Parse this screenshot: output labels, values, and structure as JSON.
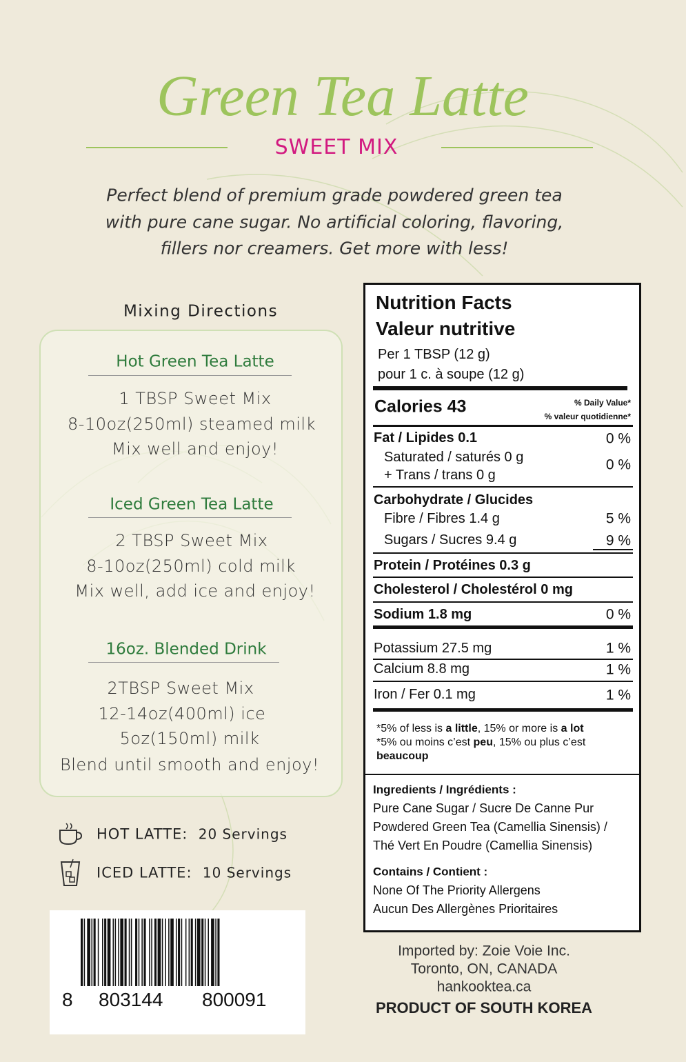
{
  "header": {
    "title": "Green Tea Latte",
    "subtitle": "SWEET MIX",
    "description": [
      "Perfect blend of premium grade powdered green tea",
      "with pure cane sugar. No artificial coloring, flavoring,",
      "fillers nor creamers. Get more with less!"
    ]
  },
  "directions": {
    "title": "Mixing Directions",
    "sections": [
      {
        "heading": "Hot Green Tea Latte",
        "lines": [
          "1 TBSP Sweet Mix",
          "8-10oz(250ml) steamed milk",
          "Mix well and enjoy!"
        ]
      },
      {
        "heading": "Iced Green Tea Latte",
        "lines": [
          "2 TBSP Sweet Mix",
          "8-10oz(250ml) cold milk",
          "Mix well, add ice and enjoy!"
        ]
      },
      {
        "heading": "16oz. Blended Drink",
        "lines": [
          "2TBSP Sweet Mix",
          "12-14oz(400ml) ice",
          "5oz(150ml) milk",
          "Blend until smooth and enjoy!"
        ]
      }
    ]
  },
  "servings": [
    {
      "label": "HOT LATTE:",
      "value": "20 Servings"
    },
    {
      "label": "ICED LATTE:",
      "value": "10 Servings"
    }
  ],
  "barcode": {
    "digits": [
      "8",
      "803144",
      "800091"
    ]
  },
  "nutrition": {
    "title": "Nutrition Facts",
    "title_fr": "Valeur nutritive",
    "serving": [
      "Per 1 TBSP (12 g)",
      "pour 1 c. à soupe (12 g)"
    ],
    "calories": "Calories 43",
    "dv_header": [
      "% Daily Value*",
      "% valeur quotidienne*"
    ],
    "rows": [
      {
        "label": "Fat / Lipides 0.1",
        "dv": "0 %"
      },
      {
        "label": "Saturated / saturés 0 g"
      },
      {
        "label": "+ Trans / trans 0 g",
        "dv": "0 %"
      },
      {
        "label": "Carbohydrate / Glucides"
      },
      {
        "label": "Fibre / Fibres 1.4 g",
        "dv": "5 %"
      },
      {
        "label": "Sugars / Sucres 9.4 g",
        "dv": "9 %"
      },
      {
        "label": "Protein / Protéines 0.3 g"
      },
      {
        "label": "Cholesterol / Cholestérol 0 mg"
      },
      {
        "label": "Sodium 1.8 mg",
        "dv": "0 %"
      },
      {
        "label": "Potassium 27.5 mg",
        "dv": "1 %"
      },
      {
        "label": "Calcium 8.8 mg",
        "dv": "1 %"
      },
      {
        "label": "Iron / Fer 0.1 mg",
        "dv": "1 %"
      }
    ],
    "footnote": [
      [
        "*5% of less is ",
        "a little",
        ", 15% or more is ",
        "a lot"
      ],
      [
        "*5% ou moins c’est ",
        "peu",
        ", 15% ou plus c’est",
        "beaucoup"
      ]
    ]
  },
  "ingredients": {
    "title": "Ingredients / Ingrédients :",
    "lines": [
      "Pure Cane Sugar / Sucre De Canne Pur",
      "Powdered Green Tea (Camellia Sinensis) /",
      "Thé Vert En Poudre (Camellia Sinensis)"
    ]
  },
  "contains": {
    "title": "Contains / Contient :",
    "lines": [
      "None Of The Priority Allergens",
      "Aucun Des Allergènes Prioritaires"
    ]
  },
  "importer": [
    "Imported by: Zoie Voie Inc.",
    "Toronto, ON, CANADA",
    "hankooktea.ca"
  ],
  "origin": "PRODUCT OF SOUTH KOREA"
}
